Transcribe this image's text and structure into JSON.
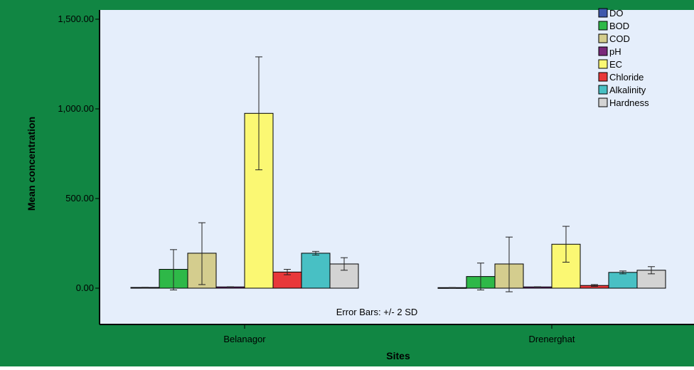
{
  "chart_data": {
    "type": "bar",
    "title": "",
    "xlabel": "Sites",
    "ylabel": "Mean concentration",
    "categories": [
      "Belanagor",
      "Drenerghat"
    ],
    "ylim": [
      -135,
      1550
    ],
    "yticks": [
      0,
      500,
      1000,
      1500
    ],
    "ytick_labels": [
      "0.00",
      "500.00",
      "1,000.00",
      "1,500.00"
    ],
    "grid": false,
    "legend_position": "top-right",
    "annotation": "Error Bars: +/- 2 SD",
    "series": [
      {
        "name": "DO",
        "color": "#3e58ac",
        "values": [
          4,
          3
        ],
        "err_low": [
          3,
          2
        ],
        "err_high": [
          5,
          4
        ]
      },
      {
        "name": "BOD",
        "color": "#2eb848",
        "values": [
          105,
          65
        ],
        "err_low": [
          -10,
          -10
        ],
        "err_high": [
          215,
          140
        ]
      },
      {
        "name": "COD",
        "color": "#d4cd8e",
        "values": [
          195,
          135
        ],
        "err_low": [
          20,
          -20
        ],
        "err_high": [
          365,
          285
        ]
      },
      {
        "name": "pH",
        "color": "#79287a",
        "values": [
          7,
          7
        ],
        "err_low": [
          6,
          6
        ],
        "err_high": [
          8,
          8
        ]
      },
      {
        "name": "EC",
        "color": "#fbf873",
        "values": [
          975,
          245
        ],
        "err_low": [
          660,
          145
        ],
        "err_high": [
          1290,
          345
        ]
      },
      {
        "name": "Chloride",
        "color": "#e8383a",
        "values": [
          90,
          15
        ],
        "err_low": [
          75,
          10
        ],
        "err_high": [
          105,
          20
        ]
      },
      {
        "name": "Alkalinity",
        "color": "#48c0c4",
        "values": [
          195,
          88
        ],
        "err_low": [
          185,
          80
        ],
        "err_high": [
          205,
          96
        ]
      },
      {
        "name": "Hardness",
        "color": "#d3d3d3",
        "values": [
          135,
          100
        ],
        "err_low": [
          100,
          80
        ],
        "err_high": [
          170,
          120
        ]
      }
    ]
  },
  "colors": {
    "frame": "#118643",
    "plot_background": "#e5eefb"
  }
}
